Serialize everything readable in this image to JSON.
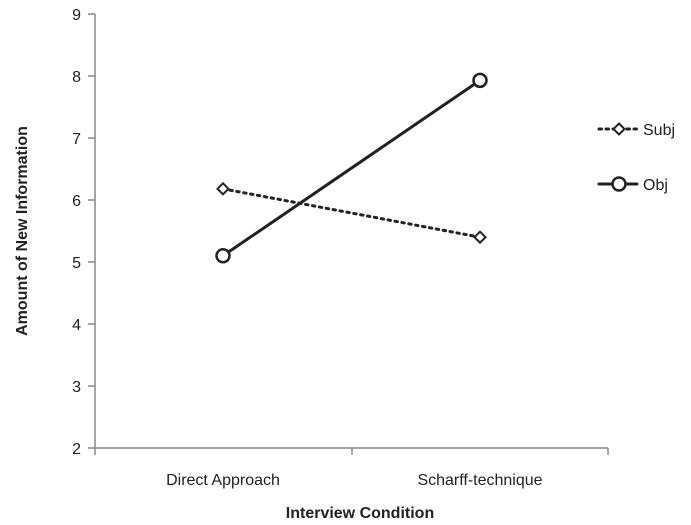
{
  "chart_data": {
    "type": "line",
    "categories": [
      "Direct Approach",
      "Scharff-technique"
    ],
    "xlabel": "Interview Condition",
    "ylabel": "Amount of New Information",
    "ylim": [
      2,
      9
    ],
    "yticks": [
      "2",
      "3",
      "4",
      "5",
      "6",
      "7",
      "8",
      "9"
    ],
    "grid": false,
    "legend_position": "right",
    "series": [
      {
        "name": "Subj",
        "values": [
          6.18,
          5.4
        ],
        "line_style": "dotted",
        "marker": "diamond",
        "color": "#222222"
      },
      {
        "name": "Obj",
        "values": [
          5.1,
          7.93
        ],
        "line_style": "solid",
        "marker": "circle",
        "color": "#222222"
      }
    ]
  }
}
